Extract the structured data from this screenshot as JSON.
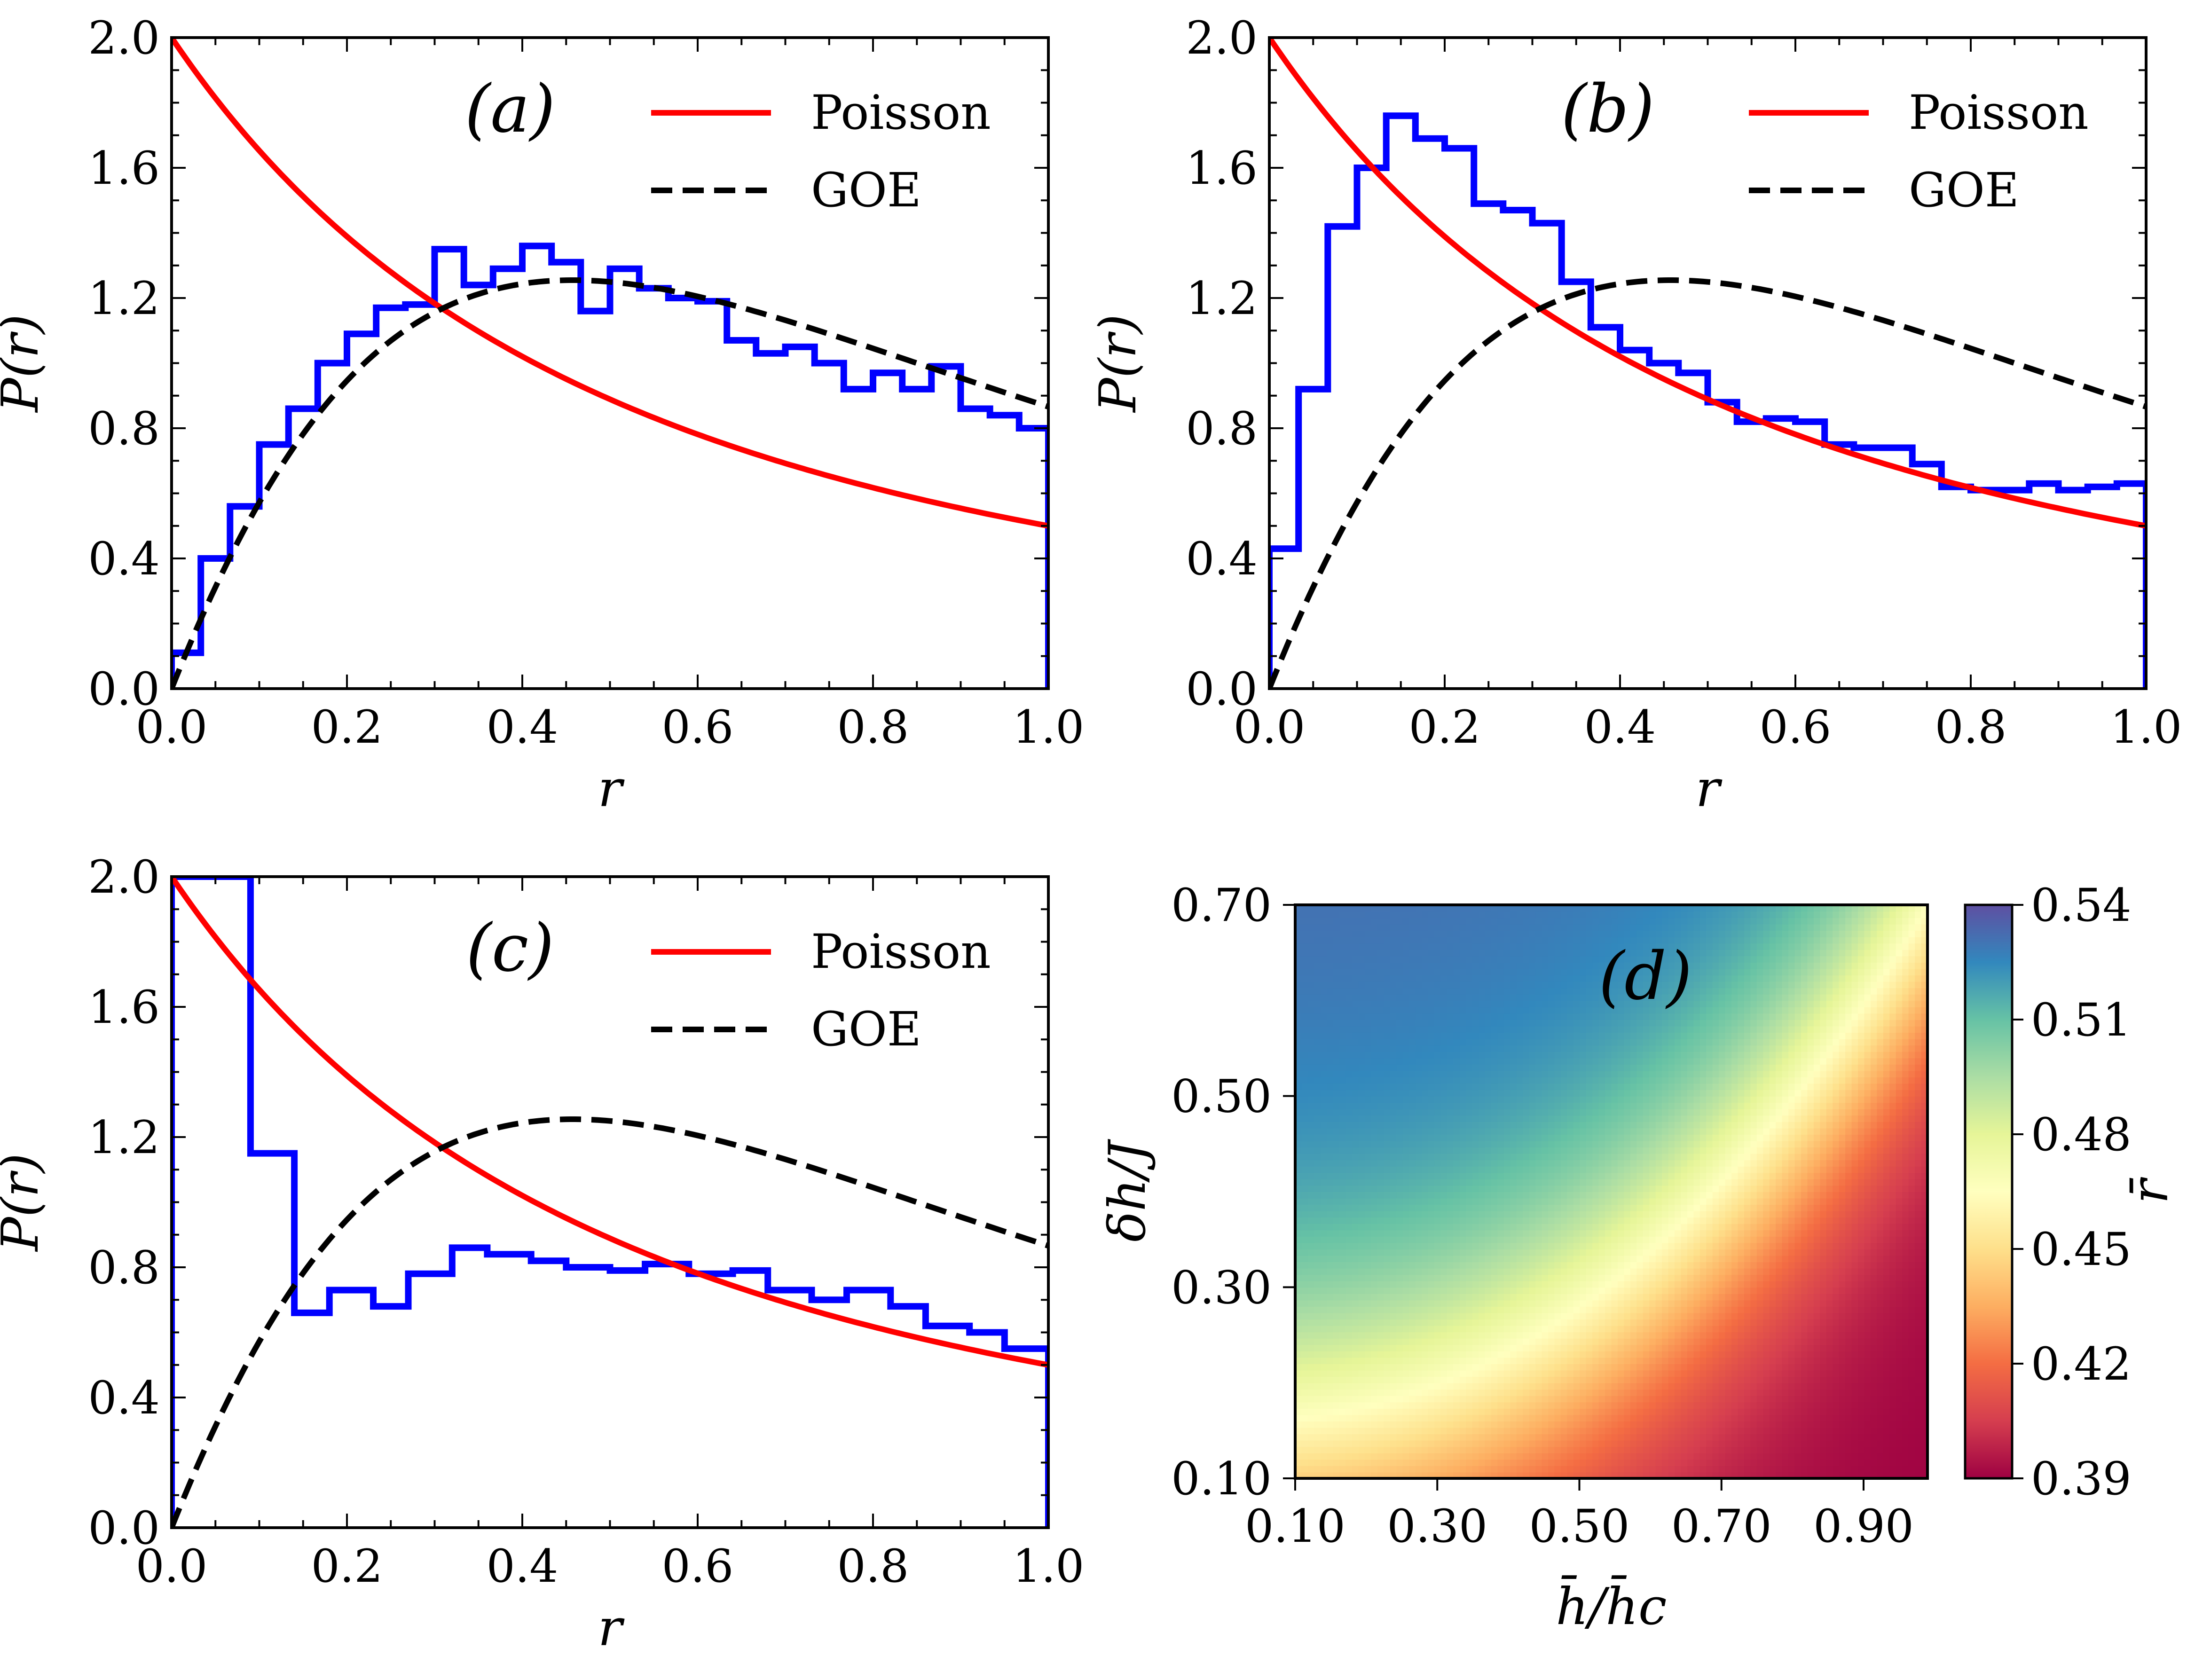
{
  "chart_data": [
    {
      "type": "line",
      "panel_label": "(a)",
      "xlabel": "r",
      "ylabel": "P(r)",
      "xlim": [
        0.0,
        1.0
      ],
      "ylim": [
        0.0,
        2.0
      ],
      "xticks": [
        "0.0",
        "0.2",
        "0.4",
        "0.6",
        "0.8",
        "1.0"
      ],
      "yticks": [
        "0.0",
        "0.4",
        "0.8",
        "1.2",
        "1.6",
        "2.0"
      ],
      "legend": {
        "placement": "top-right",
        "entries": [
          "Poisson",
          "GOE"
        ]
      },
      "series": [
        {
          "name": "Poisson",
          "style": "solid",
          "color": "#ff0000",
          "formula": "2/(1+r)^2"
        },
        {
          "name": "GOE",
          "style": "dashed",
          "color": "#000000",
          "formula": "(27/4)(r+r^2)/(1+r+r^2)^(5/2)"
        },
        {
          "style": "step",
          "color": "#0000ff",
          "bin_width": 0.0333,
          "values": [
            0.11,
            0.4,
            0.56,
            0.75,
            0.86,
            1.0,
            1.09,
            1.17,
            1.18,
            1.35,
            1.24,
            1.29,
            1.36,
            1.31,
            1.16,
            1.29,
            1.23,
            1.2,
            1.19,
            1.07,
            1.03,
            1.05,
            1.0,
            0.92,
            0.97,
            0.92,
            0.99,
            0.86,
            0.84,
            0.8
          ]
        }
      ]
    },
    {
      "type": "line",
      "panel_label": "(b)",
      "xlabel": "r",
      "ylabel": "P(r)",
      "xlim": [
        0.0,
        1.0
      ],
      "ylim": [
        0.0,
        2.0
      ],
      "xticks": [
        "0.0",
        "0.2",
        "0.4",
        "0.6",
        "0.8",
        "1.0"
      ],
      "yticks": [
        "0.0",
        "0.4",
        "0.8",
        "1.2",
        "1.6",
        "2.0"
      ],
      "legend": {
        "placement": "top-right",
        "entries": [
          "Poisson",
          "GOE"
        ]
      },
      "series": [
        {
          "name": "Poisson",
          "style": "solid",
          "color": "#ff0000",
          "formula": "2/(1+r)^2"
        },
        {
          "name": "GOE",
          "style": "dashed",
          "color": "#000000",
          "formula": "(27/4)(r+r^2)/(1+r+r^2)^(5/2)"
        },
        {
          "style": "step",
          "color": "#0000ff",
          "bin_width": 0.0333,
          "values": [
            0.43,
            0.92,
            1.42,
            1.6,
            1.76,
            1.69,
            1.66,
            1.49,
            1.47,
            1.43,
            1.25,
            1.11,
            1.04,
            1.0,
            0.97,
            0.88,
            0.82,
            0.83,
            0.82,
            0.75,
            0.74,
            0.74,
            0.69,
            0.62,
            0.61,
            0.61,
            0.63,
            0.61,
            0.62,
            0.63
          ]
        }
      ]
    },
    {
      "type": "line",
      "panel_label": "(c)",
      "xlabel": "r",
      "ylabel": "P(r)",
      "xlim": [
        0.0,
        1.0
      ],
      "ylim": [
        0.0,
        2.0
      ],
      "xticks": [
        "0.0",
        "0.2",
        "0.4",
        "0.6",
        "0.8",
        "1.0"
      ],
      "yticks": [
        "0.0",
        "0.4",
        "0.8",
        "1.2",
        "1.6",
        "2.0"
      ],
      "legend": {
        "placement": "top-right",
        "entries": [
          "Poisson",
          "GOE"
        ]
      },
      "series": [
        {
          "name": "Poisson",
          "style": "solid",
          "color": "#ff0000",
          "formula": "2/(1+r)^2"
        },
        {
          "name": "GOE",
          "style": "dashed",
          "color": "#000000",
          "formula": "(27/4)(r+r^2)/(1+r+r^2)^(5/2)"
        },
        {
          "style": "step",
          "color": "#0000ff",
          "x_edges": [
            0.0,
            0.0,
            0.09,
            0.09,
            0.14,
            0.14,
            0.18,
            0.18,
            0.23,
            0.23,
            0.27,
            0.27,
            0.32,
            0.32,
            0.36,
            0.36,
            0.41,
            0.41,
            0.45,
            0.45,
            0.5,
            0.5,
            0.54,
            0.54,
            0.59,
            0.59,
            0.64,
            0.64,
            0.68,
            0.68,
            0.73,
            0.73,
            0.77,
            0.77,
            0.82,
            0.82,
            0.86,
            0.86,
            0.91,
            0.91,
            0.95,
            0.95,
            1.0,
            1.0
          ],
          "y_edges": [
            0.0,
            2.0,
            2.0,
            1.15,
            1.15,
            0.66,
            0.66,
            0.73,
            0.73,
            0.68,
            0.68,
            0.78,
            0.78,
            0.86,
            0.86,
            0.84,
            0.84,
            0.82,
            0.82,
            0.8,
            0.8,
            0.79,
            0.79,
            0.81,
            0.81,
            0.78,
            0.78,
            0.79,
            0.79,
            0.73,
            0.73,
            0.7,
            0.7,
            0.73,
            0.73,
            0.68,
            0.68,
            0.62,
            0.62,
            0.6,
            0.6,
            0.55,
            0.55,
            0.0
          ]
        }
      ]
    },
    {
      "type": "heatmap",
      "panel_label": "(d)",
      "xlabel": "h̄/h̄c",
      "ylabel": "δh/J",
      "xlim": [
        0.1,
        0.99
      ],
      "ylim": [
        0.1,
        0.7
      ],
      "xticks": [
        "0.10",
        "0.30",
        "0.50",
        "0.70",
        "0.90"
      ],
      "yticks": [
        "0.10",
        "0.30",
        "0.50",
        "0.70"
      ],
      "colorbar": {
        "label": "r̄",
        "ticks": [
          "0.39",
          "0.42",
          "0.45",
          "0.48",
          "0.51",
          "0.54"
        ],
        "range": [
          0.39,
          0.54
        ],
        "colormap": "Spectral",
        "colors": [
          "#9e0142",
          "#d53e4f",
          "#f46d43",
          "#fdae61",
          "#fee08b",
          "#ffffbf",
          "#e6f598",
          "#abdda4",
          "#66c2a5",
          "#3288bd",
          "#5e4fa2"
        ]
      }
    }
  ]
}
